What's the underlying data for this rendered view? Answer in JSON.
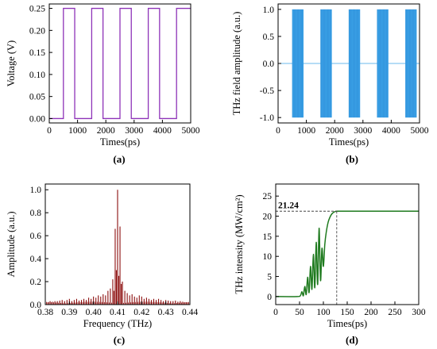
{
  "colors": {
    "voltage": "#8e33b8",
    "thz_field": "#3aa0e6",
    "spectrum": "#8b0d0d",
    "intensity": "#1e7a1e"
  },
  "chart_data": [
    {
      "id": "a",
      "type": "line",
      "caption": "(a)",
      "xlabel": "Times(ps)",
      "ylabel": "Voltage (V)",
      "xlim": [
        0,
        5000
      ],
      "ylim": [
        -0.01,
        0.26
      ],
      "xticks": [
        0,
        1000,
        2000,
        3000,
        4000,
        5000
      ],
      "yticks": [
        0.0,
        0.05,
        0.1,
        0.15,
        0.2,
        0.25
      ],
      "ytick_labels": [
        "0.00",
        "0.05",
        "0.10",
        "0.15",
        "0.20",
        "0.25"
      ],
      "series": [
        {
          "x": [
            0,
            500,
            500,
            900,
            900,
            1500,
            1500,
            1900,
            1900,
            2500,
            2500,
            2900,
            2900,
            3500,
            3500,
            3900,
            3900,
            4500,
            4500,
            5000
          ],
          "y": [
            0,
            0,
            0.25,
            0.25,
            0,
            0,
            0.25,
            0.25,
            0,
            0,
            0.25,
            0.25,
            0,
            0,
            0.25,
            0.25,
            0,
            0,
            0.25,
            0.25
          ]
        }
      ]
    },
    {
      "id": "b",
      "type": "area",
      "caption": "(b)",
      "xlabel": "Times(ps)",
      "ylabel": "THz field amplitude (a.u.)",
      "xlim": [
        0,
        5000
      ],
      "ylim": [
        -1.1,
        1.1
      ],
      "xticks": [
        0,
        1000,
        2000,
        3000,
        4000,
        5000
      ],
      "yticks": [
        -1.0,
        -0.5,
        0.0,
        0.5,
        1.0
      ],
      "ytick_labels": [
        "-1.0",
        "-0.5",
        "0.0",
        "0.5",
        "1.0"
      ],
      "bursts": [
        {
          "start": 500,
          "end": 900,
          "min": -1.0,
          "max": 1.0
        },
        {
          "start": 1500,
          "end": 1900,
          "min": -1.0,
          "max": 1.0
        },
        {
          "start": 2500,
          "end": 2900,
          "min": -1.0,
          "max": 1.0
        },
        {
          "start": 3500,
          "end": 3900,
          "min": -1.0,
          "max": 1.0
        },
        {
          "start": 4500,
          "end": 4900,
          "min": -1.0,
          "max": 1.0
        }
      ],
      "baseline": 0.0
    },
    {
      "id": "c",
      "type": "bar",
      "caption": "(c)",
      "xlabel": "Frequency (THz)",
      "ylabel": "Amplitude (a.u.)",
      "xlim": [
        0.38,
        0.44
      ],
      "ylim": [
        0,
        1.05
      ],
      "xticks": [
        0.38,
        0.39,
        0.4,
        0.41,
        0.42,
        0.43,
        0.44
      ],
      "xtick_labels": [
        "0.38",
        "0.39",
        "0.40",
        "0.41",
        "0.42",
        "0.43",
        "0.44"
      ],
      "yticks": [
        0.0,
        0.2,
        0.4,
        0.6,
        0.8,
        1.0
      ],
      "ytick_labels": [
        "0.0",
        "0.2",
        "0.4",
        "0.6",
        "0.8",
        "1.0"
      ],
      "x": [
        0.381,
        0.382,
        0.383,
        0.384,
        0.385,
        0.386,
        0.387,
        0.388,
        0.389,
        0.39,
        0.391,
        0.392,
        0.393,
        0.394,
        0.395,
        0.396,
        0.397,
        0.398,
        0.399,
        0.4,
        0.401,
        0.402,
        0.403,
        0.404,
        0.405,
        0.406,
        0.407,
        0.408,
        0.4085,
        0.409,
        0.4095,
        0.41,
        0.4105,
        0.411,
        0.4115,
        0.412,
        0.413,
        0.414,
        0.415,
        0.416,
        0.417,
        0.418,
        0.419,
        0.42,
        0.421,
        0.422,
        0.423,
        0.424,
        0.425,
        0.426,
        0.427,
        0.428,
        0.429,
        0.43,
        0.431,
        0.432,
        0.433,
        0.434,
        0.435,
        0.436,
        0.437,
        0.438,
        0.439
      ],
      "values": [
        0.02,
        0.03,
        0.025,
        0.03,
        0.03,
        0.035,
        0.04,
        0.03,
        0.04,
        0.05,
        0.03,
        0.04,
        0.05,
        0.035,
        0.04,
        0.05,
        0.04,
        0.06,
        0.05,
        0.07,
        0.06,
        0.08,
        0.07,
        0.09,
        0.08,
        0.12,
        0.14,
        0.22,
        0.12,
        0.66,
        0.3,
        1.0,
        0.25,
        0.68,
        0.18,
        0.2,
        0.12,
        0.1,
        0.08,
        0.09,
        0.07,
        0.06,
        0.08,
        0.07,
        0.05,
        0.06,
        0.05,
        0.04,
        0.05,
        0.04,
        0.05,
        0.04,
        0.03,
        0.04,
        0.035,
        0.03,
        0.03,
        0.035,
        0.025,
        0.03,
        0.025,
        0.02,
        0.02
      ]
    },
    {
      "id": "d",
      "type": "line",
      "caption": "(d)",
      "xlabel": "Times(ps)",
      "ylabel": "THz intensity (MW/cm²)",
      "xlim": [
        0,
        300
      ],
      "ylim": [
        -2,
        28
      ],
      "xticks": [
        0,
        50,
        100,
        150,
        200,
        250,
        300
      ],
      "yticks": [
        0,
        5,
        10,
        15,
        20,
        25
      ],
      "annotation": {
        "label": "21.24",
        "x": 128,
        "y": 21.24
      },
      "series": [
        {
          "x": [
            0,
            45,
            52,
            55,
            58,
            61,
            64,
            67,
            70,
            73,
            76,
            79,
            82,
            85,
            88,
            91,
            94,
            97,
            100,
            103,
            106,
            110,
            114,
            118,
            122,
            126,
            130,
            135,
            145,
            160,
            200,
            250,
            300
          ],
          "y": [
            0,
            0,
            0.3,
            1.2,
            0.2,
            2.5,
            0.5,
            4.8,
            1.0,
            7.5,
            1.8,
            10.5,
            2.2,
            13.5,
            3.0,
            17.0,
            4.0,
            12.0,
            7.5,
            13.0,
            16.0,
            18.5,
            19.8,
            20.6,
            21.0,
            21.2,
            21.24,
            21.24,
            21.24,
            21.24,
            21.24,
            21.24,
            21.24
          ]
        }
      ]
    }
  ]
}
